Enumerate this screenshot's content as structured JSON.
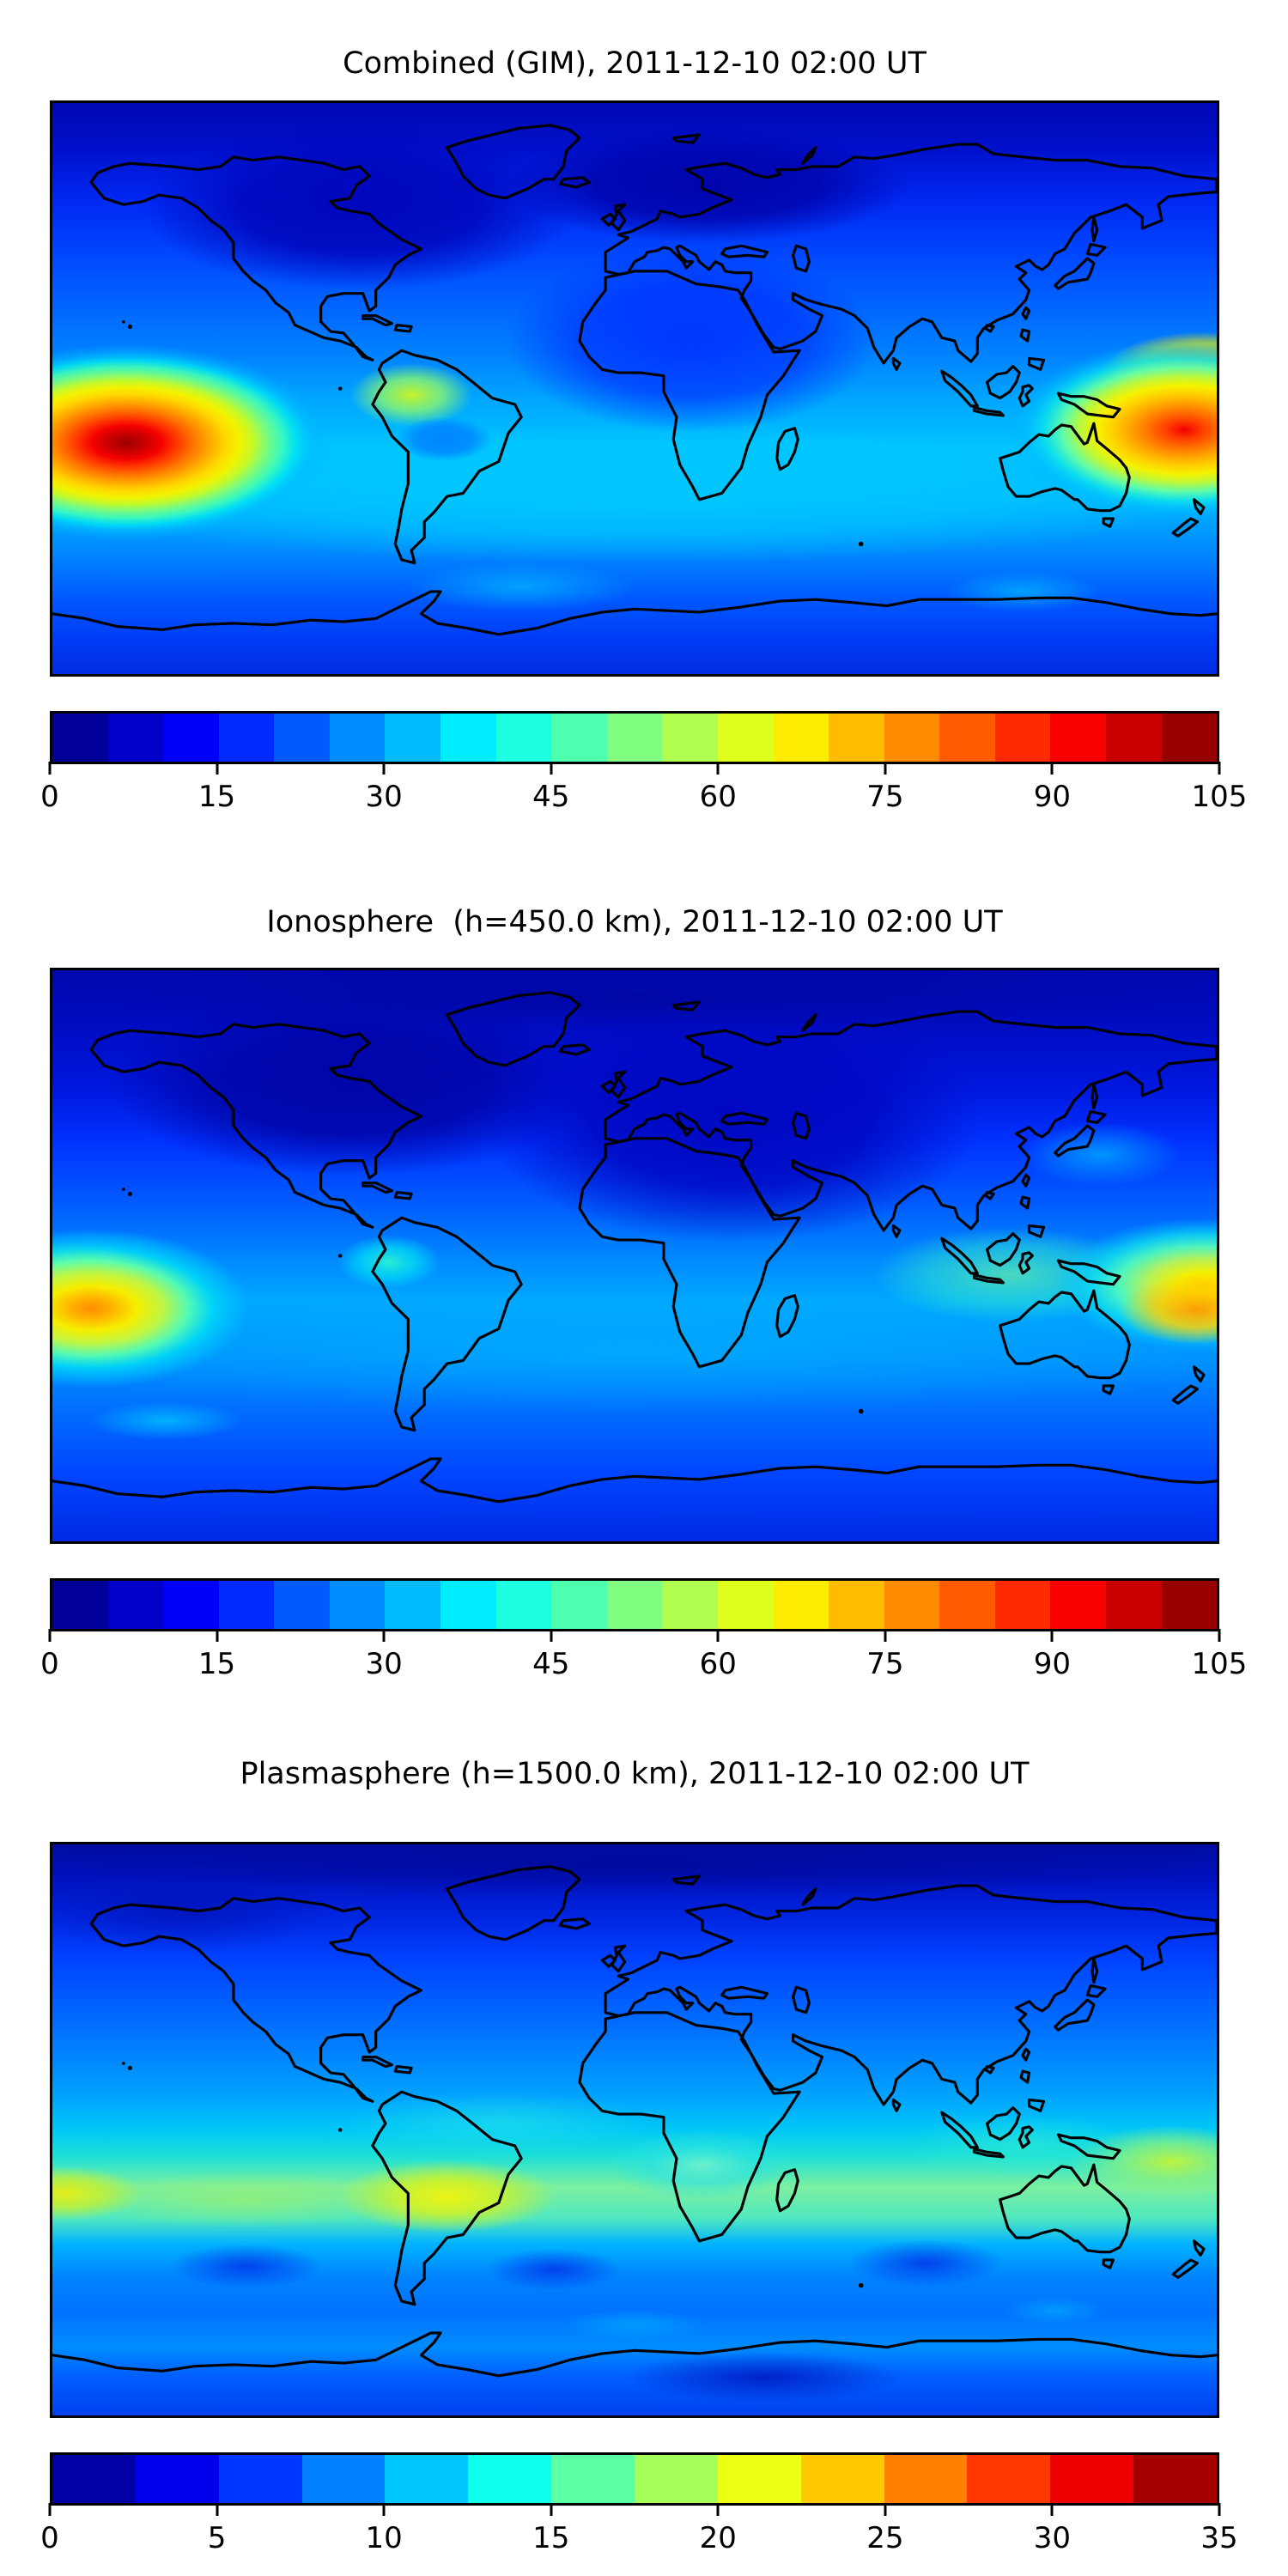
{
  "figure": {
    "background_color": "#ffffff",
    "coastline_color": "#000000",
    "colormap_name": "jet",
    "projection": "equirectangular world map, lon -180..180, lat -90..90"
  },
  "panels": [
    {
      "id": "combined-gim",
      "title": "Combined (GIM), 2011-12-10 02:00 UT",
      "colorbar": {
        "min": 0,
        "max": 105,
        "tick_step": 15,
        "level_step": 5,
        "n_segments": 21,
        "ticks": [
          "0",
          "15",
          "30",
          "45",
          "60",
          "75",
          "90",
          "105"
        ],
        "segment_colors": [
          "#000098",
          "#0000c8",
          "#0000f9",
          "#002aff",
          "#005bff",
          "#008cff",
          "#00bcff",
          "#00edff",
          "#1effe1",
          "#4fffb0",
          "#80ff80",
          "#b0ff4f",
          "#e1ff1e",
          "#ffed00",
          "#ffbc00",
          "#ff8c00",
          "#ff5b00",
          "#ff2a00",
          "#f90000",
          "#c80000",
          "#980000"
        ]
      }
    },
    {
      "id": "ionosphere",
      "title": "Ionosphere  (h=450.0 km), 2011-12-10 02:00 UT",
      "colorbar": {
        "min": 0,
        "max": 105,
        "tick_step": 15,
        "level_step": 5,
        "n_segments": 21,
        "ticks": [
          "0",
          "15",
          "30",
          "45",
          "60",
          "75",
          "90",
          "105"
        ],
        "segment_colors": [
          "#000098",
          "#0000c8",
          "#0000f9",
          "#002aff",
          "#005bff",
          "#008cff",
          "#00bcff",
          "#00edff",
          "#1effe1",
          "#4fffb0",
          "#80ff80",
          "#b0ff4f",
          "#e1ff1e",
          "#ffed00",
          "#ffbc00",
          "#ff8c00",
          "#ff5b00",
          "#ff2a00",
          "#f90000",
          "#c80000",
          "#980000"
        ]
      }
    },
    {
      "id": "plasmasphere",
      "title": "Plasmasphere (h=1500.0 km), 2011-12-10 02:00 UT",
      "colorbar": {
        "min": 0,
        "max": 35,
        "tick_step": 5,
        "level_step": 2.5,
        "n_segments": 14,
        "ticks": [
          "0",
          "5",
          "10",
          "15",
          "20",
          "25",
          "30",
          "35"
        ],
        "segment_colors": [
          "#0000a4",
          "#0000ed",
          "#0037ff",
          "#0080ff",
          "#00c8ff",
          "#0fffed",
          "#5bffa4",
          "#a4ff5b",
          "#edff12",
          "#ffc800",
          "#ff8000",
          "#ff3700",
          "#ed0000",
          "#a40000"
        ]
      }
    }
  ],
  "chart_data": [
    {
      "type": "heatmap",
      "subtype": "filled-contour-world-map",
      "title": "Combined (GIM), 2011-12-10 02:00 UT",
      "projection": "equirectangular",
      "lon_range": [
        -180,
        180
      ],
      "lat_range": [
        -90,
        90
      ],
      "colormap": "jet",
      "levels": {
        "min": 0,
        "max": 105,
        "step": 5
      },
      "colorbar_ticks": [
        0,
        15,
        30,
        45,
        60,
        75,
        90,
        105
      ],
      "legend_position": "horizontal colorbar below map",
      "features": [
        {
          "name": "primary-maximum-central-pacific",
          "lon": -158,
          "lat": -17,
          "value": 102
        },
        {
          "name": "secondary-maximum-west-pacific",
          "lon": 172,
          "lat": -15,
          "value": 95
        },
        {
          "name": "north-lobe-west-pacific",
          "lon": 176,
          "lat": 4,
          "value": 80
        },
        {
          "name": "enhancement-northwest-south-america",
          "lon": -71,
          "lat": -2,
          "value": 55
        },
        {
          "name": "local-dip-east-of-andes",
          "lon": -60,
          "lat": -16,
          "value": 32
        },
        {
          "name": "southern-midlatitude-cyan-band",
          "lon": 0,
          "lat": -35,
          "value": 35
        },
        {
          "name": "minimum-north-atlantic-europe",
          "lon": 10,
          "lat": 58,
          "value": 7
        },
        {
          "name": "minimum-north-america",
          "lon": -90,
          "lat": 55,
          "value": 8
        }
      ]
    },
    {
      "type": "heatmap",
      "subtype": "filled-contour-world-map",
      "title": "Ionosphere  (h=450.0 km), 2011-12-10 02:00 UT",
      "projection": "equirectangular",
      "lon_range": [
        -180,
        180
      ],
      "lat_range": [
        -90,
        90
      ],
      "colormap": "jet",
      "levels": {
        "min": 0,
        "max": 105,
        "step": 5
      },
      "colorbar_ticks": [
        0,
        15,
        30,
        45,
        60,
        75,
        90,
        105
      ],
      "legend_position": "horizontal colorbar below map",
      "features": [
        {
          "name": "primary-maximum-central-pacific",
          "lon": -168,
          "lat": -17,
          "value": 77
        },
        {
          "name": "yellow-lobe-central-pacific",
          "lon": -175,
          "lat": -6,
          "value": 65
        },
        {
          "name": "secondary-maximum-west-pacific",
          "lon": 174,
          "lat": -17,
          "value": 72
        },
        {
          "name": "yellow-band-west-pacific",
          "lon": 176,
          "lat": -8,
          "value": 65
        },
        {
          "name": "cyan-spot-northwest-south-america",
          "lon": -76,
          "lat": -2,
          "value": 38
        },
        {
          "name": "cyan-spot-near-japan",
          "lon": 148,
          "lat": 32,
          "value": 28
        },
        {
          "name": "minimum-north-america-atlantic-africa-europe",
          "lon": -20,
          "lat": 35,
          "value": 4
        },
        {
          "name": "southern-midlatitude-band",
          "lon": 0,
          "lat": -35,
          "value": 25
        }
      ]
    },
    {
      "type": "heatmap",
      "subtype": "filled-contour-world-map",
      "title": "Plasmasphere (h=1500.0 km), 2011-12-10 02:00 UT",
      "projection": "equirectangular",
      "lon_range": [
        -180,
        180
      ],
      "lat_range": [
        -90,
        90
      ],
      "colormap": "jet",
      "levels": {
        "min": 0,
        "max": 35,
        "step": 2.5
      },
      "colorbar_ticks": [
        0,
        5,
        10,
        15,
        20,
        25,
        30,
        35
      ],
      "legend_position": "horizontal colorbar below map",
      "features": [
        {
          "name": "yellow-maximum-south-america",
          "lon": -58,
          "lat": -21,
          "value": 21
        },
        {
          "name": "yellow-maximum-far-left-pacific",
          "lon": -176,
          "lat": -20,
          "value": 21
        },
        {
          "name": "yellow-green-maximum-west-pacific",
          "lon": 166,
          "lat": -9,
          "value": 19
        },
        {
          "name": "cyan-band-equator",
          "lon": -45,
          "lat": 2,
          "value": 14
        },
        {
          "name": "cyan-patch-southern-africa",
          "lon": 20,
          "lat": -10,
          "value": 14
        },
        {
          "name": "dark-oval-south-pacific",
          "lon": -120,
          "lat": -43,
          "value": 7
        },
        {
          "name": "dark-oval-south-atlantic",
          "lon": -25,
          "lat": -44,
          "value": 7
        },
        {
          "name": "dark-oval-south-indian",
          "lon": 90,
          "lat": -44,
          "value": 7
        },
        {
          "name": "minimum-arctic-band",
          "lon": 0,
          "lat": 75,
          "value": 2
        },
        {
          "name": "minimum-antarctica-interior",
          "lon": 40,
          "lat": -79,
          "value": 5
        }
      ]
    }
  ]
}
